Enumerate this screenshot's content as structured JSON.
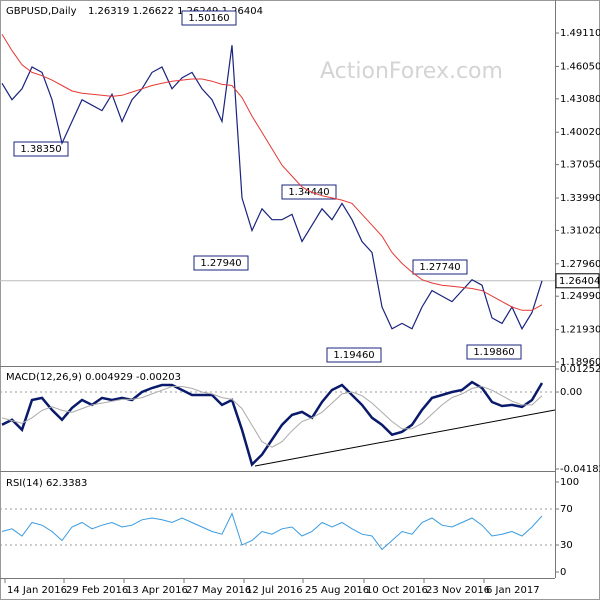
{
  "chart_data": [
    {
      "type": "line",
      "title": "GBPUSD,Daily",
      "subtitle": "1.26319 1.26622 1.26249 1.26404",
      "watermark": "ActionForex.com",
      "xlim": [
        -0.2,
        55.3
      ],
      "xticks": [
        {
          "value": 0.3,
          "label": "14 Jan 2016"
        },
        {
          "value": 6.2,
          "label": "29 Feb 2016"
        },
        {
          "value": 12.2,
          "label": "13 Apr 2016"
        },
        {
          "value": 18.2,
          "label": "27 May 2016"
        },
        {
          "value": 24.2,
          "label": "12 Jul 2016"
        },
        {
          "value": 30.1,
          "label": "25 Aug 2016"
        },
        {
          "value": 36.2,
          "label": "10 Oct 2016"
        },
        {
          "value": 42.2,
          "label": "23 Nov 2016"
        },
        {
          "value": 48.2,
          "label": "6 Jan 2017"
        }
      ],
      "ylim": [
        1.18685,
        1.5168
      ],
      "yticks": [
        {
          "value": 1.4911,
          "label": "1.49110"
        },
        {
          "value": 1.4605,
          "label": "1.46050"
        },
        {
          "value": 1.4308,
          "label": "1.43080"
        },
        {
          "value": 1.4002,
          "label": "1.40020"
        },
        {
          "value": 1.3705,
          "label": "1.37050"
        },
        {
          "value": 1.3399,
          "label": "1.33990"
        },
        {
          "value": 1.3102,
          "label": "1.31020"
        },
        {
          "value": 1.2796,
          "label": "1.27960"
        },
        {
          "value": 1.2499,
          "label": "1.24990"
        },
        {
          "value": 1.2193,
          "label": "1.21930"
        },
        {
          "value": 1.1896,
          "label": "1.18960"
        }
      ],
      "last_price": 1.26404,
      "annotations": [
        {
          "value": 1.5016,
          "label": "1.50160"
        },
        {
          "value": 1.3835,
          "label": "1.38350"
        },
        {
          "value": 1.3444,
          "label": "1.34440"
        },
        {
          "value": 1.2794,
          "label": "1.27940"
        },
        {
          "value": 1.2774,
          "label": "1.27740"
        },
        {
          "value": 1.1946,
          "label": "1.19460"
        },
        {
          "value": 1.1986,
          "label": "1.19860"
        }
      ],
      "series": [
        {
          "color": "#1a237e",
          "values": [
            1.445,
            1.43,
            1.44,
            1.46,
            1.455,
            1.43,
            1.39,
            1.41,
            1.43,
            1.425,
            1.42,
            1.435,
            1.41,
            1.43,
            1.44,
            1.455,
            1.46,
            1.44,
            1.45,
            1.455,
            1.44,
            1.43,
            1.41,
            1.48,
            1.34,
            1.31,
            1.33,
            1.32,
            1.32,
            1.325,
            1.3,
            1.315,
            1.33,
            1.32,
            1.335,
            1.32,
            1.3,
            1.29,
            1.24,
            1.22,
            1.225,
            1.22,
            1.24,
            1.255,
            1.25,
            1.245,
            1.255,
            1.265,
            1.26,
            1.23,
            1.225,
            1.24,
            1.22,
            1.235,
            1.264
          ]
        },
        {
          "color": "#e53935",
          "values": [
            1.49,
            1.475,
            1.462,
            1.455,
            1.452,
            1.448,
            1.443,
            1.438,
            1.436,
            1.435,
            1.434,
            1.433,
            1.434,
            1.437,
            1.44,
            1.443,
            1.445,
            1.447,
            1.448,
            1.449,
            1.449,
            1.447,
            1.444,
            1.443,
            1.432,
            1.415,
            1.4,
            1.385,
            1.37,
            1.36,
            1.35,
            1.345,
            1.342,
            1.34,
            1.338,
            1.335,
            1.325,
            1.315,
            1.305,
            1.29,
            1.28,
            1.272,
            1.265,
            1.262,
            1.26,
            1.259,
            1.258,
            1.257,
            1.255,
            1.25,
            1.245,
            1.24,
            1.237,
            1.237,
            1.242
          ]
        }
      ]
    },
    {
      "type": "line",
      "title": "MACD(12,26,9) 0.004929 -0.00203",
      "ylim": [
        -0.041823,
        0.012522
      ],
      "yticks": [
        0.012522,
        {
          "value": 0,
          "label": "0.00"
        },
        -0.041823
      ],
      "series": [
        {
          "color": "#0a1a6b",
          "values": [
            -0.0178,
            -0.0151,
            -0.0205,
            -0.0043,
            -0.0032,
            -0.0097,
            -0.0151,
            -0.0086,
            -0.0043,
            -0.007,
            -0.0032,
            -0.0043,
            -0.0032,
            -0.0043,
            0,
            0.0022,
            0.0038,
            0.0038,
            0.0011,
            -0.0016,
            -0.0016,
            -0.0016,
            -0.007,
            -0.0043,
            -0.0205,
            -0.0394,
            -0.034,
            -0.0259,
            -0.0178,
            -0.0124,
            -0.0108,
            -0.014,
            -0.0054,
            0.0011,
            0.0038,
            -0.0016,
            -0.007,
            -0.014,
            -0.0178,
            -0.0232,
            -0.0216,
            -0.0178,
            -0.0097,
            -0.0032,
            -0.0016,
            0,
            0.0011,
            0.0054,
            0.0022,
            -0.0054,
            -0.0076,
            -0.007,
            -0.0081,
            -0.0043,
            0.004929
          ]
        },
        {
          "color": "#aaaaaa",
          "values": [
            -0.014,
            -0.0155,
            -0.017,
            -0.014,
            -0.01,
            -0.008,
            -0.01,
            -0.011,
            -0.009,
            -0.007,
            -0.006,
            -0.005,
            -0.004,
            -0.004,
            -0.003,
            -0.001,
            0.001,
            0.003,
            0.003,
            0.002,
            0,
            -0.001,
            -0.003,
            -0.004,
            -0.009,
            -0.018,
            -0.027,
            -0.03,
            -0.027,
            -0.021,
            -0.016,
            -0.014,
            -0.011,
            -0.006,
            -0.001,
            0,
            -0.002,
            -0.006,
            -0.011,
            -0.016,
            -0.02,
            -0.02,
            -0.017,
            -0.012,
            -0.007,
            -0.003,
            -0.001,
            0.002,
            0.003,
            0.001,
            -0.002,
            -0.005,
            -0.007,
            -0.007,
            -0.002
          ]
        }
      ]
    },
    {
      "type": "line",
      "title": "RSI(14) 62.3383",
      "ylim": [
        0,
        100
      ],
      "yticks": [
        100,
        70,
        30,
        0
      ],
      "series": [
        {
          "color": "#3a9be0",
          "values": [
            45,
            48,
            40,
            55,
            52,
            45,
            35,
            50,
            55,
            48,
            52,
            55,
            50,
            52,
            58,
            60,
            58,
            55,
            60,
            55,
            50,
            45,
            42,
            65,
            30,
            35,
            45,
            42,
            48,
            50,
            40,
            45,
            55,
            50,
            55,
            48,
            42,
            40,
            25,
            35,
            45,
            42,
            55,
            60,
            52,
            50,
            55,
            60,
            52,
            40,
            42,
            45,
            40,
            50,
            62.3383
          ]
        }
      ]
    }
  ]
}
